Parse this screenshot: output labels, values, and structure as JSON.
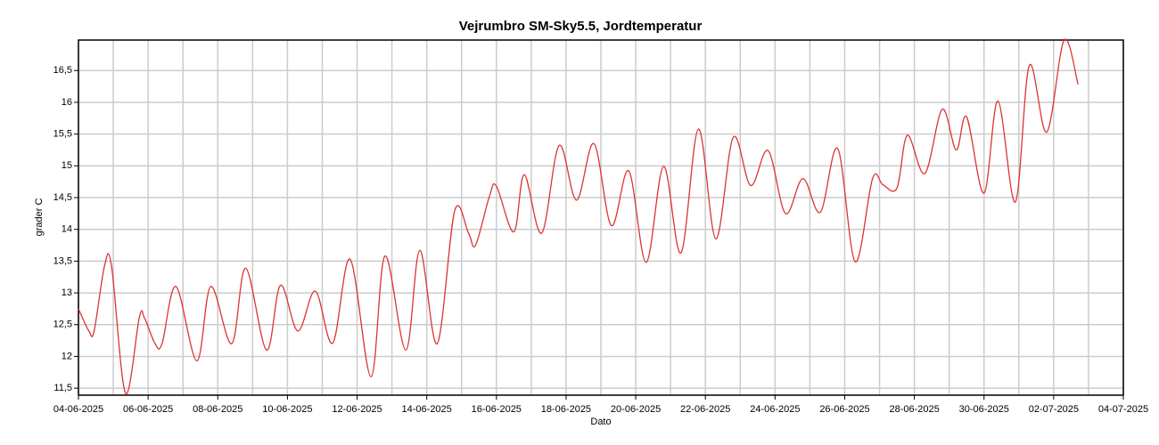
{
  "chart_data": {
    "type": "line",
    "title": "Vejrumbro SM-Sky5.5, Jordtemperatur",
    "x_label": "Dato",
    "y_label": "grader C",
    "grid": true,
    "xlim": [
      0,
      30
    ],
    "xticks": [
      {
        "value": 0,
        "label": "04-06-2025"
      },
      {
        "value": 2,
        "label": "06-06-2025"
      },
      {
        "value": 4,
        "label": "08-06-2025"
      },
      {
        "value": 6,
        "label": "10-06-2025"
      },
      {
        "value": 8,
        "label": "12-06-2025"
      },
      {
        "value": 10,
        "label": "14-06-2025"
      },
      {
        "value": 12,
        "label": "16-06-2025"
      },
      {
        "value": 14,
        "label": "18-06-2025"
      },
      {
        "value": 16,
        "label": "20-06-2025"
      },
      {
        "value": 18,
        "label": "22-06-2025"
      },
      {
        "value": 20,
        "label": "24-06-2025"
      },
      {
        "value": 22,
        "label": "26-06-2025"
      },
      {
        "value": 24,
        "label": "28-06-2025"
      },
      {
        "value": 26,
        "label": "30-06-2025"
      },
      {
        "value": 28,
        "label": "02-07-2025"
      },
      {
        "value": 30,
        "label": "04-07-2025"
      }
    ],
    "ylim": [
      11.39,
      16.98
    ],
    "yticks": [
      {
        "value": 11.5,
        "label": "11,5"
      },
      12,
      {
        "value": 12.5,
        "label": "12,5"
      },
      13,
      {
        "value": 13.5,
        "label": "13,5"
      },
      14,
      {
        "value": 14.5,
        "label": "14,5"
      },
      15,
      {
        "value": 15.5,
        "label": "15,5"
      },
      16,
      {
        "value": 16.5,
        "label": "16,5"
      }
    ],
    "x": [
      0,
      0.3,
      0.45,
      0.75,
      0.95,
      1.35,
      1.75,
      1.9,
      2.2,
      2.4,
      2.8,
      3.4,
      3.8,
      4.4,
      4.8,
      5.4,
      5.8,
      6.3,
      6.8,
      7.3,
      7.8,
      8.4,
      8.8,
      9.4,
      9.8,
      10.3,
      10.8,
      11.2,
      11.4,
      11.8,
      12.0,
      12.5,
      12.8,
      13.3,
      13.8,
      14.3,
      14.8,
      15.3,
      15.8,
      16.3,
      16.8,
      17.3,
      17.8,
      18.3,
      18.8,
      19.3,
      19.8,
      20.3,
      20.8,
      21.3,
      21.8,
      22.3,
      22.8,
      23.1,
      23.5,
      23.8,
      24.3,
      24.8,
      25.2,
      25.5,
      26.0,
      26.4,
      26.9,
      27.3,
      27.8,
      28.3,
      28.7
    ],
    "series": [
      {
        "name": "Jordtemperatur",
        "color": "#dd3333",
        "values": [
          12.75,
          12.4,
          12.4,
          13.43,
          13.42,
          11.42,
          12.62,
          12.6,
          12.2,
          12.2,
          13.1,
          11.93,
          13.1,
          12.2,
          13.39,
          12.1,
          13.12,
          12.4,
          13.03,
          12.21,
          13.53,
          11.68,
          13.58,
          12.1,
          13.67,
          12.2,
          14.29,
          13.94,
          13.75,
          14.52,
          14.68,
          13.96,
          14.86,
          13.94,
          15.32,
          14.46,
          15.35,
          14.06,
          14.92,
          13.48,
          14.99,
          13.63,
          15.58,
          13.85,
          15.45,
          14.69,
          15.24,
          14.25,
          14.8,
          14.27,
          15.27,
          13.49,
          14.8,
          14.7,
          14.65,
          15.48,
          14.88,
          15.89,
          15.25,
          15.77,
          14.57,
          16.02,
          14.43,
          16.58,
          15.53,
          16.98,
          16.28
        ]
      }
    ]
  }
}
